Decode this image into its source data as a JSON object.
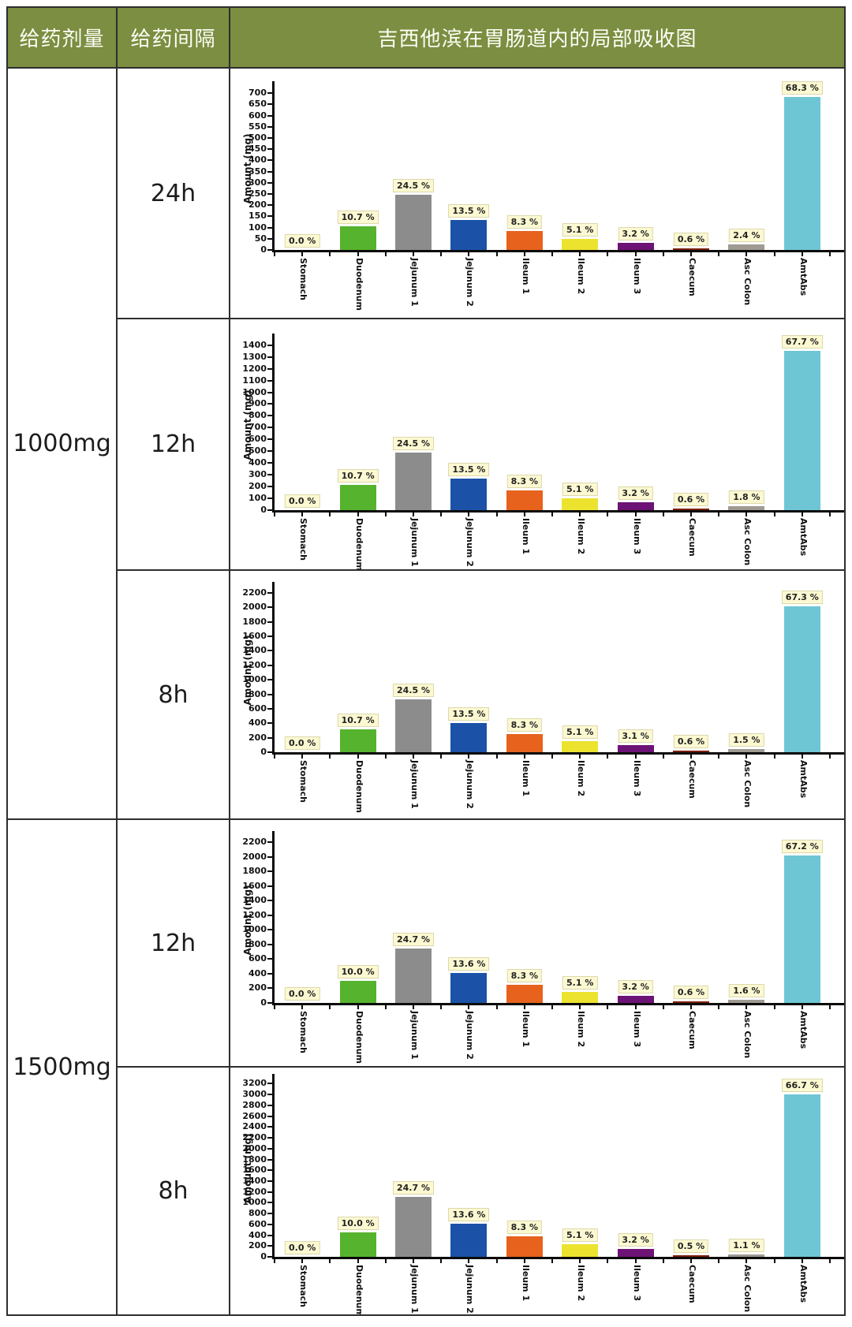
{
  "header": {
    "dose_col": "给药剂量",
    "interval_col": "给药间隔",
    "chart_col": "吉西他滨在胃肠道内的局部吸收图"
  },
  "doses": [
    {
      "label": "1000mg"
    },
    {
      "label": "1500mg"
    }
  ],
  "ylabel": "Amount (mg)",
  "categories": [
    "Stomach",
    "Duodenum",
    "Jejunum 1",
    "Jejunum 2",
    "Ileum 1",
    "Ileum 2",
    "Ileum 3",
    "Caecum",
    "Asc Colon",
    "AmtAbs"
  ],
  "bar_colors": [
    "#b8a426",
    "#56b32d",
    "#8c8c8c",
    "#1b52a8",
    "#e6621d",
    "#ece32f",
    "#6d1375",
    "#7a1f0a",
    "#9f9a92",
    "#6ec6d4"
  ],
  "colors": {
    "header_bg": "#7b8e41",
    "label_bg": "#fcf9d2",
    "axis": "#0a0a0a"
  },
  "chart_data": [
    {
      "type": "bar",
      "dose": "1000mg",
      "interval": "24h",
      "ylabel": "Amount (mg)",
      "ylim": [
        0,
        725
      ],
      "ytick_max": 700,
      "ytick_step": 50,
      "categories": [
        "Stomach",
        "Duodenum",
        "Jejunum 1",
        "Jejunum 2",
        "Ileum 1",
        "Ileum 2",
        "Ileum 3",
        "Caecum",
        "Asc Colon",
        "AmtAbs"
      ],
      "values_mg": [
        0,
        107,
        245,
        135,
        83,
        51,
        32,
        6,
        24,
        683
      ],
      "percent_labels": [
        "0.0 %",
        "10.7 %",
        "24.5 %",
        "13.5 %",
        "8.3 %",
        "5.1 %",
        "3.2 %",
        "0.6 %",
        "2.4 %",
        "68.3 %"
      ]
    },
    {
      "type": "bar",
      "dose": "1000mg",
      "interval": "12h",
      "ylabel": "Amount (mg)",
      "ylim": [
        0,
        1445
      ],
      "ytick_max": 1400,
      "ytick_step": 100,
      "categories": [
        "Stomach",
        "Duodenum",
        "Jejunum 1",
        "Jejunum 2",
        "Ileum 1",
        "Ileum 2",
        "Ileum 3",
        "Caecum",
        "Asc Colon",
        "AmtAbs"
      ],
      "values_mg": [
        0,
        214,
        490,
        270,
        166,
        102,
        64,
        12,
        36,
        1354
      ],
      "percent_labels": [
        "0.0 %",
        "10.7 %",
        "24.5 %",
        "13.5 %",
        "8.3 %",
        "5.1 %",
        "3.2 %",
        "0.6 %",
        "1.8 %",
        "67.7 %"
      ]
    },
    {
      "type": "bar",
      "dose": "1000mg",
      "interval": "8h",
      "ylabel": "Amount (mg)",
      "ylim": [
        0,
        2265
      ],
      "ytick_max": 2200,
      "ytick_step": 200,
      "categories": [
        "Stomach",
        "Duodenum",
        "Jejunum 1",
        "Jejunum 2",
        "Ileum 1",
        "Ileum 2",
        "Ileum 3",
        "Caecum",
        "Asc Colon",
        "AmtAbs"
      ],
      "values_mg": [
        0,
        321,
        735,
        405,
        249,
        153,
        93,
        18,
        45,
        2019
      ],
      "percent_labels": [
        "0.0 %",
        "10.7 %",
        "24.5 %",
        "13.5 %",
        "8.3 %",
        "5.1 %",
        "3.1 %",
        "0.6 %",
        "1.5 %",
        "67.3 %"
      ]
    },
    {
      "type": "bar",
      "dose": "1500mg",
      "interval": "12h",
      "ylabel": "Amount (mg)",
      "ylim": [
        0,
        2265
      ],
      "ytick_max": 2200,
      "ytick_step": 200,
      "categories": [
        "Stomach",
        "Duodenum",
        "Jejunum 1",
        "Jejunum 2",
        "Ileum 1",
        "Ileum 2",
        "Ileum 3",
        "Caecum",
        "Asc Colon",
        "AmtAbs"
      ],
      "values_mg": [
        0,
        300,
        741,
        408,
        249,
        153,
        96,
        18,
        48,
        2016
      ],
      "percent_labels": [
        "0.0 %",
        "10.0 %",
        "24.7 %",
        "13.6 %",
        "8.3 %",
        "5.1 %",
        "3.2 %",
        "0.6 %",
        "1.6 %",
        "67.2 %"
      ]
    },
    {
      "type": "bar",
      "dose": "1500mg",
      "interval": "8h",
      "ylabel": "Amount (mg)",
      "ylim": [
        0,
        3265
      ],
      "ytick_max": 3200,
      "ytick_step": 200,
      "categories": [
        "Stomach",
        "Duodenum",
        "Jejunum 1",
        "Jejunum 2",
        "Ileum 1",
        "Ileum 2",
        "Ileum 3",
        "Caecum",
        "Asc Colon",
        "AmtAbs"
      ],
      "values_mg": [
        0,
        450,
        1111,
        612,
        374,
        230,
        144,
        23,
        50,
        3002
      ],
      "percent_labels": [
        "0.0 %",
        "10.0 %",
        "24.7 %",
        "13.6 %",
        "8.3 %",
        "5.1 %",
        "3.2 %",
        "0.5 %",
        "1.1 %",
        "66.7 %"
      ]
    }
  ]
}
